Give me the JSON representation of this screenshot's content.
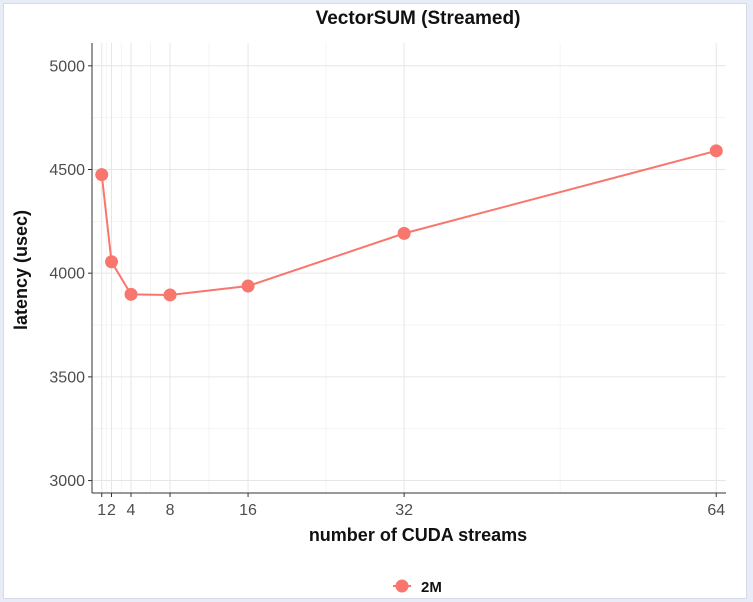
{
  "chart_data": {
    "type": "line",
    "title": "VectorSUM (Streamed)",
    "xlabel": "number of CUDA streams",
    "ylabel": "latency (usec)",
    "x_ticks": [
      1,
      2,
      4,
      8,
      16,
      32,
      64
    ],
    "x_tick_labels": [
      "1",
      "2",
      "4",
      "8",
      "16",
      "32",
      "64"
    ],
    "y_ticks": [
      3000,
      3500,
      4000,
      4500,
      5000
    ],
    "y_tick_labels": [
      "3000",
      "3500",
      "4000",
      "4500",
      "5000"
    ],
    "xlim": [
      0,
      65
    ],
    "ylim": [
      2940,
      5110
    ],
    "grid": true,
    "legend_position": "bottom",
    "series": [
      {
        "name": "2M",
        "color": "#f8766d",
        "x": [
          1,
          2,
          4,
          8,
          16,
          32,
          64
        ],
        "y": [
          4475,
          4055,
          3898,
          3895,
          3938,
          4192,
          4590
        ]
      }
    ]
  }
}
